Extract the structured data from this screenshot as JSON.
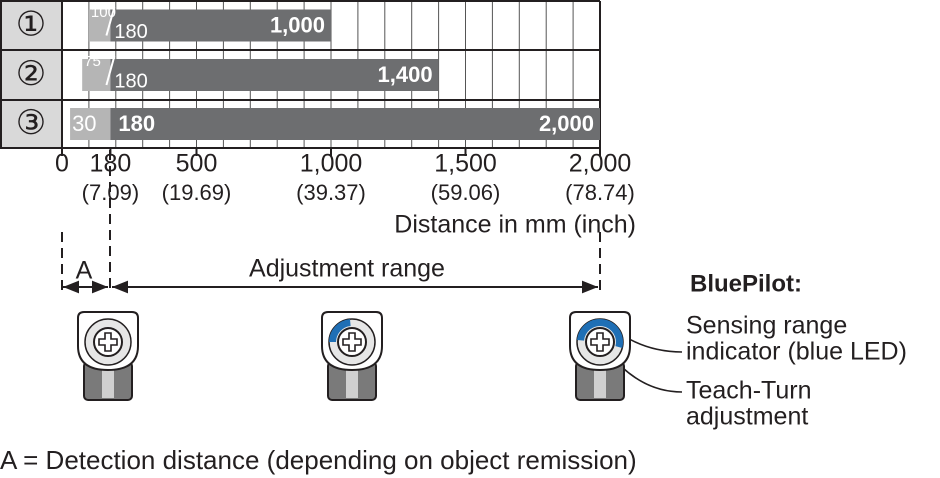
{
  "rows": [
    {
      "marker": "①",
      "min": 100,
      "teach": 180,
      "max": 1000,
      "max_label": "1,000"
    },
    {
      "marker": "②",
      "min": 75,
      "teach": 180,
      "max": 1400,
      "max_label": "1,400"
    },
    {
      "marker": "③",
      "min": 30,
      "teach": 180,
      "max": 2000,
      "max_label": "2,000"
    }
  ],
  "axis": {
    "xlim": [
      0,
      2000
    ],
    "ticks": [
      0,
      180,
      500,
      {
        "value": 1000,
        "label": "1,000"
      },
      {
        "value": 1500,
        "label": "1,500"
      },
      {
        "value": 2000,
        "label": "2,000"
      }
    ],
    "inch_labels": [
      null,
      "(7.09)",
      "(19.69)",
      "(39.37)",
      "(59.06)",
      "(78.74)"
    ],
    "title": "Distance in mm (inch)"
  },
  "labels": {
    "a": "A",
    "adjustment_range": "Adjustment range",
    "bluepilot": "BluePilot:",
    "sensing_1": "Sensing range",
    "sensing_2": "indicator (blue LED)",
    "teach_1": "Teach-Turn",
    "teach_2": "adjustment"
  },
  "footnote": "A = Detection distance (depending on object remission)"
}
